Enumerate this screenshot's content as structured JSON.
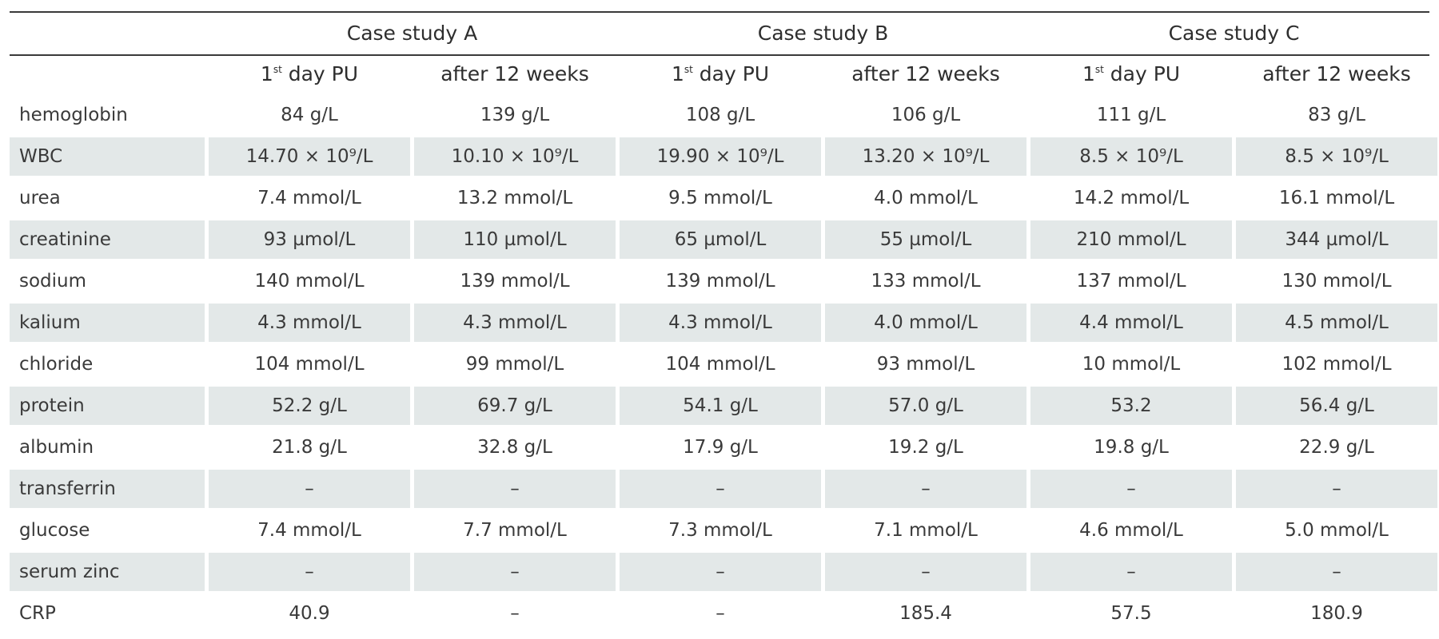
{
  "table": {
    "groups": [
      "Case study A",
      "Case study B",
      "Case study C"
    ],
    "subheaders": [
      {
        "main": "1",
        "sup": "st",
        "rest": " day PU"
      },
      {
        "main": "after 12 weeks",
        "sup": "",
        "rest": ""
      },
      {
        "main": "1",
        "sup": "st",
        "rest": " day PU"
      },
      {
        "main": "after 12 weeks",
        "sup": "",
        "rest": ""
      },
      {
        "main": "1",
        "sup": "st",
        "rest": " day PU"
      },
      {
        "main": "after 12 weeks",
        "sup": "",
        "rest": ""
      }
    ],
    "rows": [
      {
        "label": "hemoglobin",
        "shaded": false,
        "cells": [
          "84 g/L",
          "139 g/L",
          "108 g/L",
          "106 g/L",
          "111 g/L",
          "83 g/L"
        ]
      },
      {
        "label": "WBC",
        "shaded": true,
        "cells": [
          "14.70 × 10⁹/L",
          "10.10 × 10⁹/L",
          "19.90 × 10⁹/L",
          "13.20 × 10⁹/L",
          "8.5 × 10⁹/L",
          "8.5 × 10⁹/L"
        ]
      },
      {
        "label": "urea",
        "shaded": false,
        "cells": [
          "7.4 mmol/L",
          "13.2 mmol/L",
          "9.5 mmol/L",
          "4.0 mmol/L",
          "14.2 mmol/L",
          "16.1 mmol/L"
        ]
      },
      {
        "label": "creatinine",
        "shaded": true,
        "cells": [
          "93 µmol/L",
          "110 µmol/L",
          "65 µmol/L",
          "55 µmol/L",
          "210 mmol/L",
          "344 µmol/L"
        ]
      },
      {
        "label": "sodium",
        "shaded": false,
        "cells": [
          "140 mmol/L",
          "139 mmol/L",
          "139 mmol/L",
          "133 mmol/L",
          "137 mmol/L",
          "130 mmol/L"
        ]
      },
      {
        "label": "kalium",
        "shaded": true,
        "cells": [
          "4.3 mmol/L",
          "4.3 mmol/L",
          "4.3 mmol/L",
          "4.0 mmol/L",
          "4.4 mmol/L",
          "4.5 mmol/L"
        ]
      },
      {
        "label": "chloride",
        "shaded": false,
        "cells": [
          "104 mmol/L",
          "99 mmol/L",
          "104 mmol/L",
          "93 mmol/L",
          "10 mmol/L",
          "102 mmol/L"
        ]
      },
      {
        "label": "protein",
        "shaded": true,
        "cells": [
          "52.2 g/L",
          "69.7 g/L",
          "54.1 g/L",
          "57.0 g/L",
          "53.2",
          "56.4 g/L"
        ]
      },
      {
        "label": "albumin",
        "shaded": false,
        "cells": [
          "21.8 g/L",
          "32.8 g/L",
          "17.9 g/L",
          "19.2 g/L",
          "19.8 g/L",
          "22.9 g/L"
        ]
      },
      {
        "label": "transferrin",
        "shaded": true,
        "cells": [
          "–",
          "–",
          "–",
          "–",
          "–",
          "–"
        ]
      },
      {
        "label": "glucose",
        "shaded": false,
        "cells": [
          "7.4 mmol/L",
          "7.7 mmol/L",
          "7.3 mmol/L",
          "7.1 mmol/L",
          "4.6 mmol/L",
          "5.0 mmol/L"
        ]
      },
      {
        "label": "serum zinc",
        "shaded": true,
        "cells": [
          "–",
          "–",
          "–",
          "–",
          "–",
          "–"
        ]
      },
      {
        "label": "CRP",
        "shaded": false,
        "cells": [
          "40.9",
          "–",
          "–",
          "185.4",
          "57.5",
          "180.9"
        ]
      }
    ]
  }
}
